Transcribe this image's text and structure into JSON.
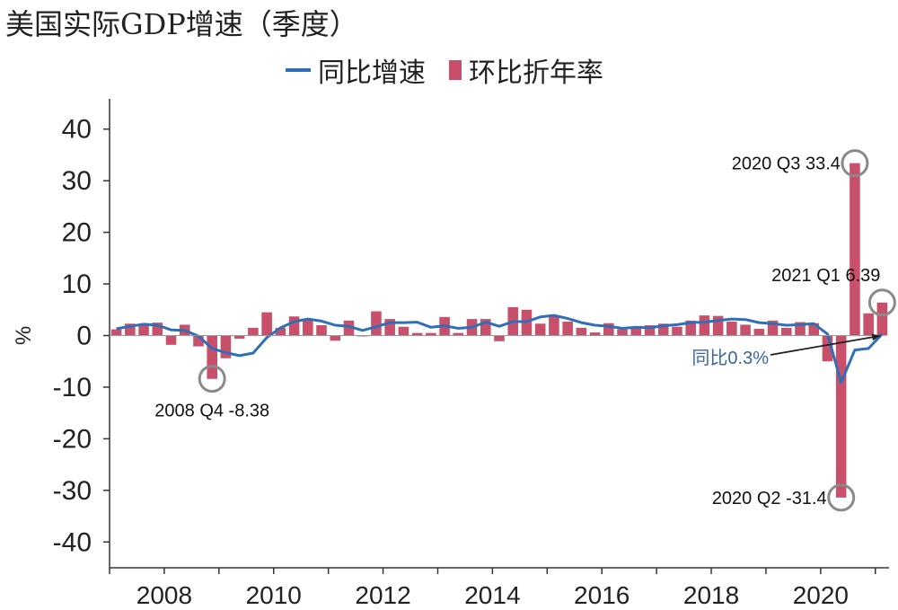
{
  "chart_data": {
    "type": "bar+line",
    "title": "美国实际GDP增速（季度）",
    "ylabel": "%",
    "ylim": [
      -45,
      45
    ],
    "yticks": [
      "40",
      "30",
      "20",
      "10",
      "0",
      "-10",
      "-20",
      "-30",
      "-40"
    ],
    "xticks": [
      "2008",
      "2010",
      "2012",
      "2014",
      "2016",
      "2018",
      "2020"
    ],
    "legend": {
      "placement": "top",
      "line_label": "同比增速",
      "bar_label": "环比折年率"
    },
    "start_quarter": "2007Q1",
    "bar_series": {
      "name": "环比折年率",
      "values": [
        1.2,
        2.3,
        2.2,
        2.5,
        -1.8,
        2.1,
        -2.1,
        -8.4,
        -4.4,
        -0.6,
        1.5,
        4.5,
        1.5,
        3.7,
        3.0,
        2.0,
        -1.0,
        2.9,
        -0.1,
        4.7,
        3.2,
        1.7,
        0.5,
        0.5,
        3.6,
        0.5,
        3.2,
        3.2,
        -1.1,
        5.5,
        5.0,
        2.3,
        3.8,
        2.7,
        1.5,
        0.6,
        2.4,
        1.2,
        1.5,
        2.0,
        2.3,
        1.7,
        2.9,
        3.9,
        3.8,
        2.7,
        2.1,
        1.3,
        2.9,
        1.5,
        2.6,
        2.4,
        -5.0,
        -31.4,
        33.4,
        4.3,
        6.39
      ]
    },
    "line_series": {
      "name": "同比增速",
      "values": [
        1.3,
        1.8,
        2.2,
        2.0,
        1.1,
        1.0,
        -0.1,
        -2.5,
        -3.3,
        -3.9,
        -3.4,
        -0.4,
        1.5,
        2.7,
        3.2,
        2.8,
        2.0,
        1.8,
        1.0,
        1.7,
        2.5,
        2.5,
        2.6,
        1.6,
        1.9,
        1.4,
        1.6,
        2.6,
        1.8,
        2.7,
        2.7,
        3.6,
        3.9,
        3.3,
        2.5,
        2.0,
        1.8,
        1.4,
        1.6,
        1.5,
        1.9,
        2.1,
        2.5,
        2.6,
        2.9,
        3.2,
        3.1,
        2.5,
        2.3,
        2.0,
        2.1,
        2.3,
        0.3,
        -9.1,
        -2.8,
        -2.5,
        0.3
      ]
    },
    "annotations": [
      {
        "label": "2008 Q4 -8.38",
        "quarter_index": 7,
        "value": -8.38,
        "text_side": "below"
      },
      {
        "label": "2020 Q2 -31.4",
        "quarter_index": 53,
        "value": -31.4,
        "text_side": "left"
      },
      {
        "label": "2020 Q3 33.4",
        "quarter_index": 54,
        "value": 33.4,
        "text_side": "left"
      },
      {
        "label": "2021 Q1 6.39",
        "quarter_index": 56,
        "value": 6.39,
        "text_side": "above-left"
      }
    ],
    "arrow_note": {
      "label": "同比0.3%",
      "quarter_index": 56,
      "value": 0.3
    },
    "colors": {
      "bar": "#c9506a",
      "line": "#2e6fb7",
      "circle": "#8a8a8a",
      "axis": "#333333",
      "note": "#3a63a8"
    }
  }
}
